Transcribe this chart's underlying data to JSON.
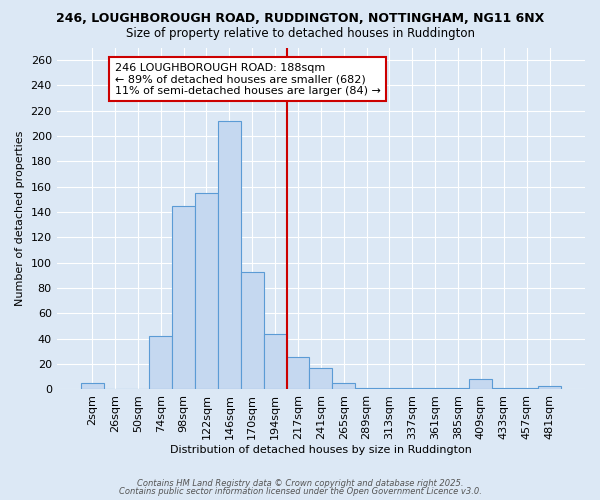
{
  "title1": "246, LOUGHBOROUGH ROAD, RUDDINGTON, NOTTINGHAM, NG11 6NX",
  "title2": "Size of property relative to detached houses in Ruddington",
  "xlabel": "Distribution of detached houses by size in Ruddington",
  "ylabel": "Number of detached properties",
  "categories": [
    "2sqm",
    "26sqm",
    "50sqm",
    "74sqm",
    "98sqm",
    "122sqm",
    "146sqm",
    "170sqm",
    "194sqm",
    "217sqm",
    "241sqm",
    "265sqm",
    "289sqm",
    "313sqm",
    "337sqm",
    "361sqm",
    "385sqm",
    "409sqm",
    "433sqm",
    "457sqm",
    "481sqm"
  ],
  "values": [
    5,
    0,
    0,
    42,
    145,
    155,
    212,
    93,
    44,
    26,
    17,
    5,
    1,
    1,
    1,
    1,
    1,
    8,
    1,
    1,
    3
  ],
  "bar_color": "#c5d8f0",
  "bar_edge_color": "#5b9bd5",
  "vline_color": "#cc0000",
  "vline_x": 8.5,
  "annotation_text": "246 LOUGHBOROUGH ROAD: 188sqm\n← 89% of detached houses are smaller (682)\n11% of semi-detached houses are larger (84) →",
  "annotation_box_color": "#ffffff",
  "annotation_box_edge": "#cc0000",
  "ylim": [
    0,
    270
  ],
  "yticks": [
    0,
    20,
    40,
    60,
    80,
    100,
    120,
    140,
    160,
    180,
    200,
    220,
    240,
    260
  ],
  "footer1": "Contains HM Land Registry data © Crown copyright and database right 2025.",
  "footer2": "Contains public sector information licensed under the Open Government Licence v3.0.",
  "bg_color": "#dce8f5",
  "plot_bg_color": "#dce8f5",
  "title1_fontsize": 9,
  "title2_fontsize": 8.5,
  "xlabel_fontsize": 8,
  "ylabel_fontsize": 8,
  "tick_fontsize": 8,
  "annotation_fontsize": 8,
  "footer_fontsize": 6
}
